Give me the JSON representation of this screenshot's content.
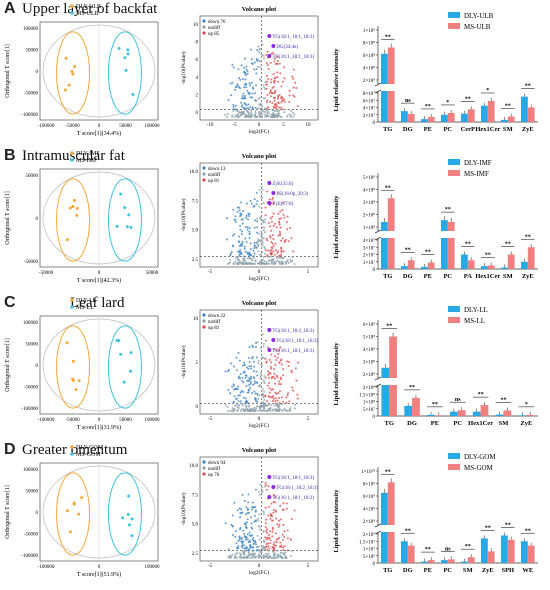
{
  "colors": {
    "orange": "#f4a93a",
    "cyan": "#3fc3de",
    "barBlue": "#29a8e6",
    "barRed": "#f07f7f",
    "volDown": "#3d85c6",
    "volNo": "#8fa3ad",
    "volUp": "#e04b4b",
    "volLabel": "#8a2be2"
  },
  "panels": [
    {
      "letter": "A",
      "title": "Upper layer of backfat",
      "pca": {
        "legend": [
          "DLY-ULB",
          "MS-ULB"
        ],
        "xlabel": "T score[1](34.4%)",
        "ylabel": "Orthogonal T score[1]",
        "xticks": [
          "-100000",
          "-50000",
          "0",
          "50000",
          "100000"
        ],
        "yticks": [
          "100000",
          "50000",
          "0",
          "-50000",
          "-100000"
        ]
      },
      "volcano": {
        "title": "Volcano plot",
        "legend": [
          "down 76",
          "nodiff",
          "up 85"
        ],
        "xlabel": "log2(FC)",
        "ylabel": "-log10(Pvalue)",
        "xticks": [
          "-10",
          "-5",
          "0",
          "5",
          "10"
        ],
        "yticks": [
          "10",
          "8",
          "6",
          "4",
          "2",
          "0"
        ],
        "labels": [
          "TG(18:1_18:1_18:3)",
          "DG(34:4e)",
          "TG(16:1_18:1_18:3)"
        ]
      },
      "bar": {
        "ylabel": "Lipid relative intensity",
        "legend": [
          "DLY-ULB",
          "MS-ULB"
        ]
      }
    },
    {
      "letter": "B",
      "title": "Intramuscular fat",
      "pca": {
        "legend": [
          "DLY-IMF",
          "MS-IMF"
        ],
        "xlabel": "T score[1](42.3%)",
        "ylabel": "Orthogonal T score[1]",
        "xticks": [
          "-50000",
          "0",
          "50000"
        ],
        "yticks": [
          "50000",
          "0",
          "-50000"
        ]
      },
      "volcano": {
        "title": "Volcano plot",
        "legend": [
          "down 13",
          "nodiff",
          "up 81"
        ],
        "xlabel": "log2(FC)",
        "ylabel": "-log10(Pvalue)",
        "xticks": [
          "-5",
          "0",
          "5"
        ],
        "yticks": [
          "10.0",
          "7.5",
          "5.0",
          "2.5"
        ],
        "labels": [
          "ZyE(35:6)",
          "PE(16:0p_20:3)",
          "ZyE(37:6)"
        ]
      },
      "bar": {
        "ylabel": "Lipid relative intensity",
        "legend": [
          "DLY-IMF",
          "MS-IMF"
        ]
      }
    },
    {
      "letter": "C",
      "title": "Leaf lard",
      "pca": {
        "legend": [
          "DLY-LL",
          "MS-LL"
        ],
        "xlabel": "T score[1](31.9%)",
        "ylabel": "Orthogonal T score[1]",
        "xticks": [
          "-100000",
          "-50000",
          "0",
          "50000",
          "100000"
        ],
        "yticks": [
          "100000",
          "50000",
          "0",
          "-50000",
          "-100000"
        ]
      },
      "volcano": {
        "title": "Volcano plot",
        "legend": [
          "down 22",
          "nodiff",
          "up 81"
        ],
        "xlabel": "log2(FC)",
        "ylabel": "-log10(Pvalue)",
        "xticks": [
          "-5",
          "0",
          "5"
        ],
        "yticks": [
          "10",
          "5",
          "0"
        ],
        "labels": [
          "TG(18:1_18:2_18:3)",
          "TG(18:1_18:1_18:3)",
          "TG(16:1_18:1_18:3)"
        ]
      },
      "bar": {
        "ylabel": "Lipid relative intensity",
        "legend": [
          "DLY-LL",
          "MS-LL"
        ]
      }
    },
    {
      "letter": "D",
      "title": "Greater omentum",
      "pca": {
        "legend": [
          "DLY-GOM",
          "MS-GOM"
        ],
        "xlabel": "T score[1](51.9%)",
        "ylabel": "Orthogonal T score[1]",
        "xticks": [
          "-100000",
          "0",
          "100000"
        ],
        "yticks": [
          "100000",
          "50000",
          "0",
          "-50000",
          "-100000"
        ]
      },
      "volcano": {
        "title": "Volcano plot",
        "legend": [
          "down 94",
          "nodiff",
          "up 76"
        ],
        "xlabel": "log2(FC)",
        "ylabel": "-log10(Pvalue)",
        "xticks": [
          "-5",
          "0",
          "5"
        ],
        "yticks": [
          "10.0",
          "7.5",
          "5.0",
          "2.5"
        ],
        "labels": [
          "TG(18:1_18:1_18:3)",
          "TG(18:1_18:2_18:3)",
          "TG(16:1_18:1_18:2)"
        ]
      },
      "bar": {
        "ylabel": "Lipid relative intensity",
        "legend": [
          "DLY-GOM",
          "MS-GOM"
        ]
      }
    }
  ],
  "chart_data": [
    {
      "type": "bar",
      "panel": "A",
      "categories": [
        "TG",
        "DG",
        "PE",
        "PC",
        "CerP",
        "Hex1Cer",
        "SM",
        "ZyE"
      ],
      "yticks_upper": [
        "1×10⁹",
        "8×10⁸",
        "6×10⁸",
        "4×10⁸",
        "2×10⁸"
      ],
      "yticks_lower": [
        "8×10⁷",
        "6×10⁷",
        "4×10⁷",
        "2×10⁷",
        "0"
      ],
      "series": [
        {
          "name": "DLY-ULB",
          "values": [
            620000000,
            30000000,
            8000000,
            20000000,
            23000000,
            45000000,
            6000000,
            70000000
          ]
        },
        {
          "name": "MS-ULB",
          "values": [
            720000000,
            22000000,
            14000000,
            25000000,
            35000000,
            58000000,
            15000000,
            40000000
          ]
        }
      ],
      "significance": [
        "**",
        "ns",
        "**",
        "*",
        "**",
        "*",
        "**",
        "**"
      ]
    },
    {
      "type": "bar",
      "panel": "B",
      "categories": [
        "TG",
        "DG",
        "PE",
        "PC",
        "PA",
        "Hex1Cer",
        "SM",
        "ZyE"
      ],
      "yticks_upper": [
        "5×10⁸",
        "4×10⁸",
        "3×10⁸",
        "2×10⁸",
        "1×10⁸"
      ],
      "yticks_lower": [
        "4×10⁷",
        "3×10⁷",
        "2×10⁷",
        "1×10⁷",
        "0"
      ],
      "series": [
        {
          "name": "DLY-IMF",
          "values": [
            140000000,
            4000000,
            3000000,
            155000000,
            20000000,
            4000000,
            2000000,
            10000000
          ]
        },
        {
          "name": "MS-IMF",
          "values": [
            330000000,
            12000000,
            9000000,
            140000000,
            12000000,
            5000000,
            20000000,
            30000000
          ]
        }
      ],
      "significance": [
        "**",
        "**",
        "**",
        "**",
        "**",
        "**",
        "**",
        "**"
      ]
    },
    {
      "type": "bar",
      "panel": "C",
      "categories": [
        "TG",
        "DG",
        "PE",
        "PC",
        "Hex1Cer",
        "SM",
        "ZyE"
      ],
      "yticks_upper": [
        "6×10⁸",
        "5×10⁸",
        "4×10⁸",
        "3×10⁸",
        "2×10⁸"
      ],
      "yticks_lower": [
        "2×10⁸",
        "1.5×10⁸",
        "1×10⁸",
        "5×10⁷",
        "0"
      ],
      "series": [
        {
          "name": "DLY-LL",
          "values": [
            250000000,
            70000000,
            8000000,
            30000000,
            30000000,
            10000000,
            5000000
          ]
        },
        {
          "name": "MS-LL",
          "values": [
            500000000,
            125000000,
            5000000,
            40000000,
            75000000,
            38000000,
            8000000
          ]
        }
      ],
      "significance": [
        "**",
        "**",
        "**",
        "ns",
        "**",
        "**",
        "*"
      ]
    },
    {
      "type": "bar",
      "panel": "D",
      "categories": [
        "TG",
        "DG",
        "PE",
        "PC",
        "SM",
        "ZyE",
        "SPH",
        "WE"
      ],
      "yticks_upper": [
        "1×10¹⁰",
        "8×10⁹",
        "6×10⁹",
        "4×10⁹",
        "2×10⁹"
      ],
      "yticks_lower": [
        "2×10⁷",
        "1.5×10⁷",
        "1×10⁷",
        "5×10⁶",
        "0"
      ],
      "series": [
        {
          "name": "DLY-GOM",
          "values": [
            6500000000,
            15000000,
            1000000,
            2000000,
            1000000,
            17000000,
            19000000,
            15000000
          ]
        },
        {
          "name": "MS-GOM",
          "values": [
            8200000000,
            12000000,
            2000000,
            2500000,
            4000000,
            8000000,
            16000000,
            12000000
          ]
        }
      ],
      "significance": [
        "**",
        "**",
        "**",
        "ns",
        "**",
        "**",
        "**",
        "**"
      ]
    }
  ]
}
